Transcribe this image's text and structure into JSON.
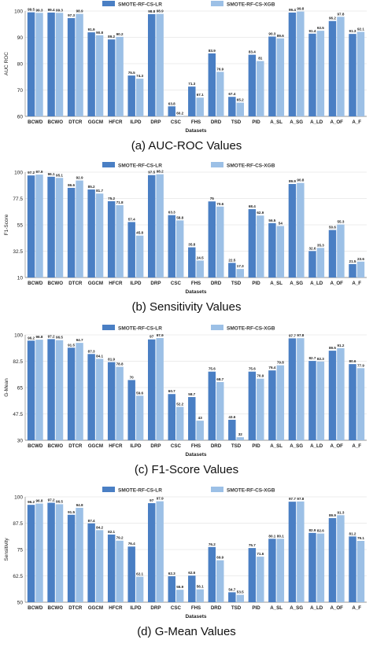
{
  "colors": {
    "series1": "#4a7fc4",
    "series2": "#9cc0e6",
    "grid": "#d9d9d9",
    "axis": "#777777",
    "text": "#222222"
  },
  "chart_data": [
    {
      "type": "bar",
      "caption": "(a) AUC-ROC Values",
      "xlabel": "Datasets",
      "ylabel": "AUC ROC",
      "ylim": [
        60,
        100
      ],
      "yticks": [
        "60",
        "70",
        "80",
        "90",
        "100"
      ],
      "legend_position": "top-center",
      "grid": true,
      "categories": [
        "BCWD",
        "BCWO",
        "DTCR",
        "GGCM",
        "HFCR",
        "ILPD",
        "DRP",
        "CSC",
        "FHS",
        "DRD",
        "TSD",
        "PID",
        "A_SL",
        "A_SG",
        "A_LD",
        "A_OF",
        "A_F"
      ],
      "series": [
        {
          "name": "SMOTE-RF-CS-LR",
          "values": [
            99.5,
            99.4,
            97.3,
            91.9,
            89.2,
            75.5,
            98.8,
            63.8,
            71.3,
            83.9,
            67.4,
            83.4,
            90.3,
            99.4,
            91.4,
            96.2,
            91.3
          ]
        },
        {
          "name": "SMOTE-RF-CS-XGB",
          "values": [
            99.3,
            99.3,
            98.9,
            90.8,
            90.2,
            74.3,
            98.9,
            60.2,
            67.1,
            76.9,
            65.2,
            81,
            89.6,
            99.8,
            92.5,
            97.8,
            92.1
          ]
        }
      ],
      "value_labels": [
        [
          "99.5",
          "99.4",
          "97.3",
          "91.9",
          "89.2",
          "75.5",
          "98.8",
          "63.8",
          "71.3",
          "83.9",
          "67.4",
          "83.4",
          "90.3",
          "99.4",
          "91.4",
          "96.2",
          "91.3"
        ],
        [
          "99.3",
          "99.3",
          "98.9",
          "90.8",
          "90.2",
          "74.3",
          "98.9",
          "60.2",
          "67.1",
          "76.9",
          "65.2",
          "81",
          "89.6",
          "99.8",
          "92.5",
          "97.8",
          "92.1"
        ]
      ]
    },
    {
      "type": "bar",
      "caption": "(b) Sensitivity Values",
      "xlabel": "Datasets",
      "ylabel": "F1-Score",
      "ylim": [
        10,
        100
      ],
      "yticks": [
        "10",
        "32.5",
        "55",
        "77.5",
        "100"
      ],
      "legend_position": "top-center",
      "grid": true,
      "categories": [
        "BCWD",
        "BCWO",
        "DTCR",
        "GGCM",
        "HFCR",
        "ILPD",
        "DRP",
        "CSC",
        "FHS",
        "DRD",
        "TSD",
        "PID",
        "A_SL",
        "A_SG",
        "A_LD",
        "A_OF",
        "A_F"
      ],
      "series": [
        {
          "name": "SMOTE-RF-CS-LR",
          "values": [
            97.2,
            96.1,
            86.6,
            85.2,
            75.2,
            57.4,
            97.5,
            63.3,
            35.8,
            75,
            22.5,
            68.4,
            56.5,
            89.9,
            32.6,
            50.6,
            21.5
          ]
        },
        {
          "name": "SMOTE-RF-CS-XGB",
          "values": [
            97.9,
            95.1,
            92.9,
            81.7,
            71.8,
            45.8,
            98.2,
            58.8,
            24.5,
            70.6,
            17.3,
            62.9,
            54,
            90.8,
            35.3,
            55.3,
            23.6
          ]
        }
      ],
      "value_labels": [
        [
          "97.2",
          "96.1",
          "86.6",
          "85.2",
          "75.2",
          "57.4",
          "97.5",
          "63.3",
          "35.8",
          "75",
          "22.5",
          "68.4",
          "56.5",
          "89.9",
          "32.6",
          "50.6",
          "21.5"
        ],
        [
          "97.9",
          "95.1",
          "92.9",
          "81.7",
          "71.8",
          "45.8",
          "98.2",
          "58.8",
          "24.5",
          "70.6",
          "17.3",
          "62.9",
          "54",
          "90.8",
          "35.3",
          "55.3",
          "23.6"
        ]
      ]
    },
    {
      "type": "bar",
      "caption": "(c) F1-Score Values",
      "xlabel": "Datasets",
      "ylabel": "G-Mean",
      "ylim": [
        30,
        100
      ],
      "yticks": [
        "30",
        "47.5",
        "65",
        "82.5",
        "100"
      ],
      "legend_position": "top-center",
      "grid": true,
      "categories": [
        "BCWD",
        "BCWO",
        "DTCR",
        "GGCM",
        "HFCR",
        "ILPD",
        "DRP",
        "CSC",
        "FHS",
        "DRD",
        "TSD",
        "PID",
        "A_SL",
        "A_SG",
        "A_LD",
        "A_OF",
        "A_F"
      ],
      "series": [
        {
          "name": "SMOTE-RF-CS-LR",
          "values": [
            96.2,
            97.2,
            91.5,
            87.3,
            81.9,
            70,
            97,
            60.7,
            58.7,
            75.6,
            43.6,
            75.6,
            76.4,
            97.7,
            82.7,
            89.5,
            80.6
          ]
        },
        {
          "name": "SMOTE-RF-CS-XGB",
          "values": [
            96.8,
            96.5,
            94.7,
            84.1,
            78.8,
            59.6,
            97.9,
            52.2,
            43,
            68.7,
            32,
            70.9,
            79.8,
            97.8,
            82.3,
            91.2,
            77.9
          ]
        }
      ],
      "value_labels": [
        [
          "96.2",
          "97.2",
          "91.5",
          "87.3",
          "81.9",
          "70",
          "97",
          "60.7",
          "58.7",
          "75.6",
          "43.6",
          "75.6",
          "76.4",
          "97.7",
          "82.7",
          "89.5",
          "80.6"
        ],
        [
          "96.8",
          "96.5",
          "94.7",
          "84.1",
          "78.8",
          "59.6",
          "97.9",
          "52.2",
          "43",
          "68.7",
          "32",
          "70.9",
          "79.8",
          "97.8",
          "82.3",
          "91.2",
          "77.9"
        ]
      ]
    },
    {
      "type": "bar",
      "caption": "(d) G-Mean Values",
      "xlabel": "Datasets",
      "ylabel": "Sensitivity",
      "ylim": [
        50,
        100
      ],
      "yticks": [
        "50",
        "62.5",
        "75",
        "87.5",
        "100"
      ],
      "legend_position": "top-center",
      "grid": true,
      "categories": [
        "BCWD",
        "BCWO",
        "DTCR",
        "GGCM",
        "HFCR",
        "ILPD",
        "DRP",
        "CSC",
        "FHS",
        "DRD",
        "TSD",
        "PID",
        "A_SL",
        "A_SG",
        "A_LD",
        "A_OF",
        "A_F"
      ],
      "series": [
        {
          "name": "SMOTE-RF-CS-LR",
          "values": [
            96.2,
            97.2,
            91.5,
            87.4,
            82.1,
            76.4,
            97,
            62.3,
            62.6,
            76.2,
            54.7,
            75.7,
            80.1,
            97.7,
            82.9,
            89.9,
            81.2
          ]
        },
        {
          "name": "SMOTE-RF-CS-XGB",
          "values": [
            96.8,
            96.5,
            94.8,
            84.2,
            79.2,
            62.1,
            97.9,
            55.9,
            56.1,
            69.9,
            53.5,
            71.6,
            80.1,
            97.8,
            82.6,
            91.3,
            79.1
          ]
        }
      ],
      "value_labels": [
        [
          "96.2",
          "97.2",
          "91.5",
          "87.4",
          "82.1",
          "76.4",
          "97",
          "62.3",
          "62.6",
          "76.2",
          "54.7",
          "75.7",
          "80.1",
          "97.7",
          "82.9",
          "89.9",
          "81.2"
        ],
        [
          "96.8",
          "96.5",
          "94.8",
          "84.2",
          "79.2",
          "62.1",
          "97.9",
          "55.9",
          "56.1",
          "69.9",
          "53.5",
          "71.6",
          "80.1",
          "97.8",
          "82.6",
          "91.3",
          "79.1"
        ]
      ]
    }
  ]
}
